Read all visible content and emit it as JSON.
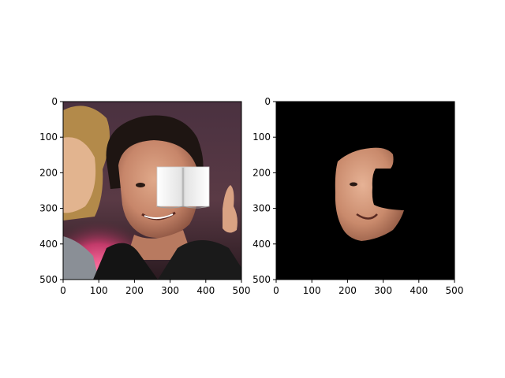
{
  "chart_data": [
    {
      "type": "image",
      "title": "",
      "xlabel": "",
      "ylabel": "",
      "xlim": [
        0,
        500
      ],
      "ylim": [
        500,
        0
      ],
      "xticks": [
        0,
        100,
        200,
        300,
        400,
        500
      ],
      "yticks": [
        0,
        100,
        200,
        300,
        400,
        500
      ],
      "xtick_labels": [
        "0",
        "100",
        "200",
        "300",
        "400",
        "500"
      ],
      "ytick_labels": [
        "0",
        "100",
        "200",
        "300",
        "400",
        "500"
      ],
      "grid": false,
      "content": "photo of two people with a white book pasted over one face",
      "book_occluder": {
        "x0": 265,
        "x1": 410,
        "y0": 185,
        "y1": 295
      }
    },
    {
      "type": "image",
      "title": "",
      "xlabel": "",
      "ylabel": "",
      "xlim": [
        0,
        500
      ],
      "ylim": [
        500,
        0
      ],
      "xticks": [
        0,
        100,
        200,
        300,
        400,
        500
      ],
      "yticks": [
        0,
        100,
        200,
        300,
        400,
        500
      ],
      "xtick_labels": [
        "0",
        "100",
        "200",
        "300",
        "400",
        "500"
      ],
      "ytick_labels": [
        "0",
        "100",
        "200",
        "300",
        "400",
        "500"
      ],
      "grid": false,
      "content": "face mask on black background with occluded region removed",
      "background_color": "#000000"
    }
  ],
  "colors": {
    "frame": "#000000",
    "book": "#f3f3f3",
    "mask_background": "#000000"
  }
}
